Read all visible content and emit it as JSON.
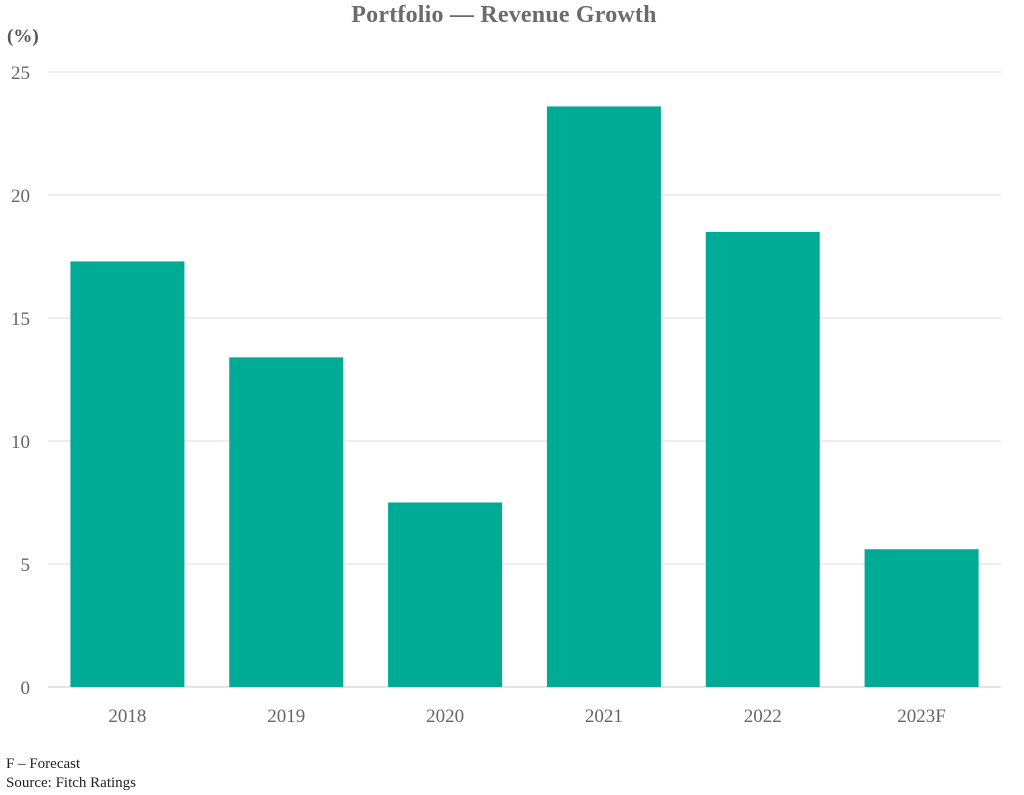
{
  "chart_data": {
    "type": "bar",
    "title": "Portfolio — Revenue Growth",
    "ylabel": "(%)",
    "xlabel": "",
    "categories": [
      "2018",
      "2019",
      "2020",
      "2021",
      "2022",
      "2023F"
    ],
    "values": [
      17.3,
      13.4,
      7.5,
      23.6,
      18.5,
      5.6
    ],
    "ylim": [
      0,
      25
    ],
    "yticks": [
      "0",
      "5",
      "10",
      "15",
      "20",
      "25"
    ],
    "grid": true,
    "legend": "none",
    "bar_color": "#00ab96",
    "grid_color": "#dcdcdc"
  },
  "footnotes": {
    "forecast": "F – Forecast",
    "source": "Source: Fitch Ratings"
  }
}
